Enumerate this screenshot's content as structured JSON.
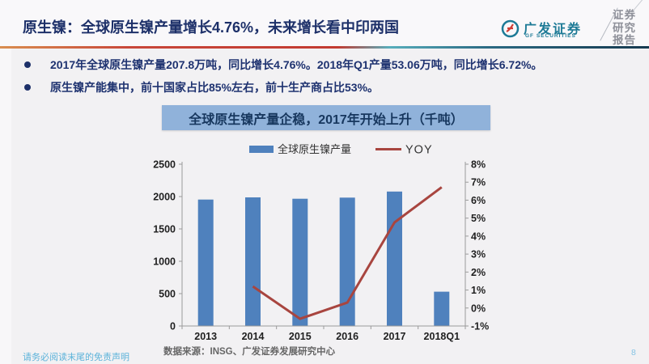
{
  "page": {
    "title": "原生镍：全球原生镍产量增长4.76%，未来增长看中印两国",
    "page_number": "8",
    "footer_disclaimer": "请务必阅读末尾的免责声明"
  },
  "header": {
    "brand_name": "广发证券",
    "brand_sub": "GF SECURITIES",
    "report_type": "证券研究报告"
  },
  "bullets": {
    "item1": "2017年全球原生镍产量207.8万吨，同比增长4.76%。2018年Q1产量53.06万吨，同比增长6.72%。",
    "item2": "原生镍产能集中，前十国家占比85%左右，前十生产商占比53%。"
  },
  "chart_title_banner": "全球原生镍产量企稳，2017年开始上升（千吨）",
  "source_note": "数据来源：INSG、广发证券发展研究中心",
  "colors": {
    "accent_navy": "#1d3069",
    "banner_bg": "#90b2da",
    "bar": "#4f81bd",
    "line": "#a8453f",
    "brand_teal": "#1d7a96",
    "brand_red": "#cf3e36",
    "footer_blue": "#5cb3da"
  },
  "chart_data": {
    "type": "bar",
    "subtype": "bar+line dual axis",
    "title": "全球原生镍产量企稳，2017年开始上升（千吨）",
    "categories": [
      "2013",
      "2014",
      "2015",
      "2016",
      "2017",
      "2018Q1"
    ],
    "series": [
      {
        "name": "全球原生镍产量",
        "type": "bar",
        "axis": "left",
        "values": [
          1954,
          1988,
          1966,
          1984,
          2078,
          530.6
        ]
      },
      {
        "name": "YOY",
        "type": "line",
        "axis": "right",
        "values": [
          null,
          1.2,
          -0.6,
          0.3,
          4.76,
          6.72
        ]
      }
    ],
    "left_axis": {
      "min": 0,
      "max": 2500,
      "step": 500
    },
    "right_axis": {
      "min": -1,
      "max": 8,
      "step": 1,
      "suffix": "%"
    },
    "grid": false,
    "legend_position": "top"
  }
}
